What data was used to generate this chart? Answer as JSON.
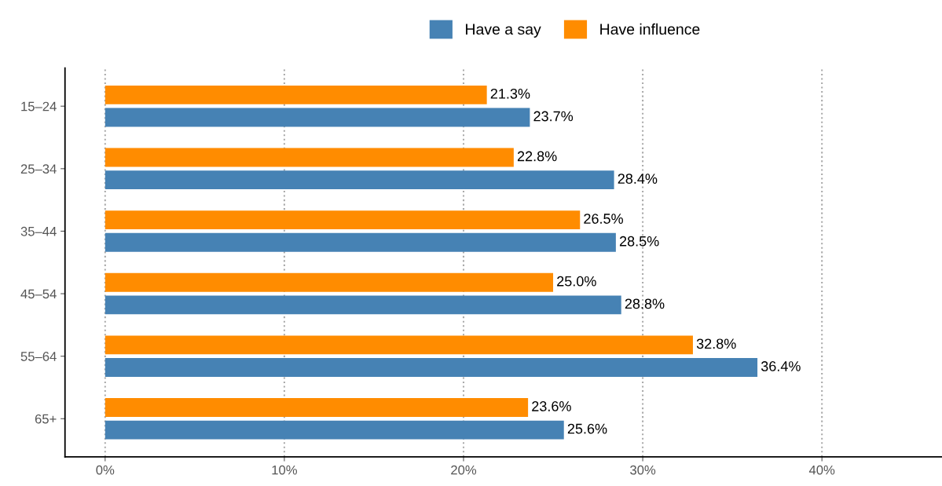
{
  "chart_data": {
    "type": "bar",
    "orientation": "horizontal",
    "categories": [
      "15–24",
      "25–34",
      "35–44",
      "45–54",
      "55–64",
      "65+"
    ],
    "series": [
      {
        "name": "Have a say",
        "color": "#4682b4",
        "values": [
          23.7,
          28.4,
          28.5,
          28.8,
          36.4,
          25.6
        ],
        "value_labels": [
          "23.7%",
          "28.4%",
          "28.5%",
          "28.8%",
          "36.4%",
          "25.6%"
        ]
      },
      {
        "name": "Have influence",
        "color": "#ff8c00",
        "values": [
          21.3,
          22.8,
          26.5,
          25.0,
          32.8,
          23.6
        ],
        "value_labels": [
          "21.3%",
          "22.8%",
          "26.5%",
          "25.0%",
          "32.8%",
          "23.6%"
        ]
      }
    ],
    "xlim": [
      -2.24,
      46.7
    ],
    "xticks": [
      {
        "value": 0,
        "label": "0%"
      },
      {
        "value": 10,
        "label": "10%"
      },
      {
        "value": 20,
        "label": "20%"
      },
      {
        "value": 30,
        "label": "30%"
      },
      {
        "value": 40,
        "label": "40%"
      }
    ],
    "grid": "x",
    "legend": "top"
  }
}
